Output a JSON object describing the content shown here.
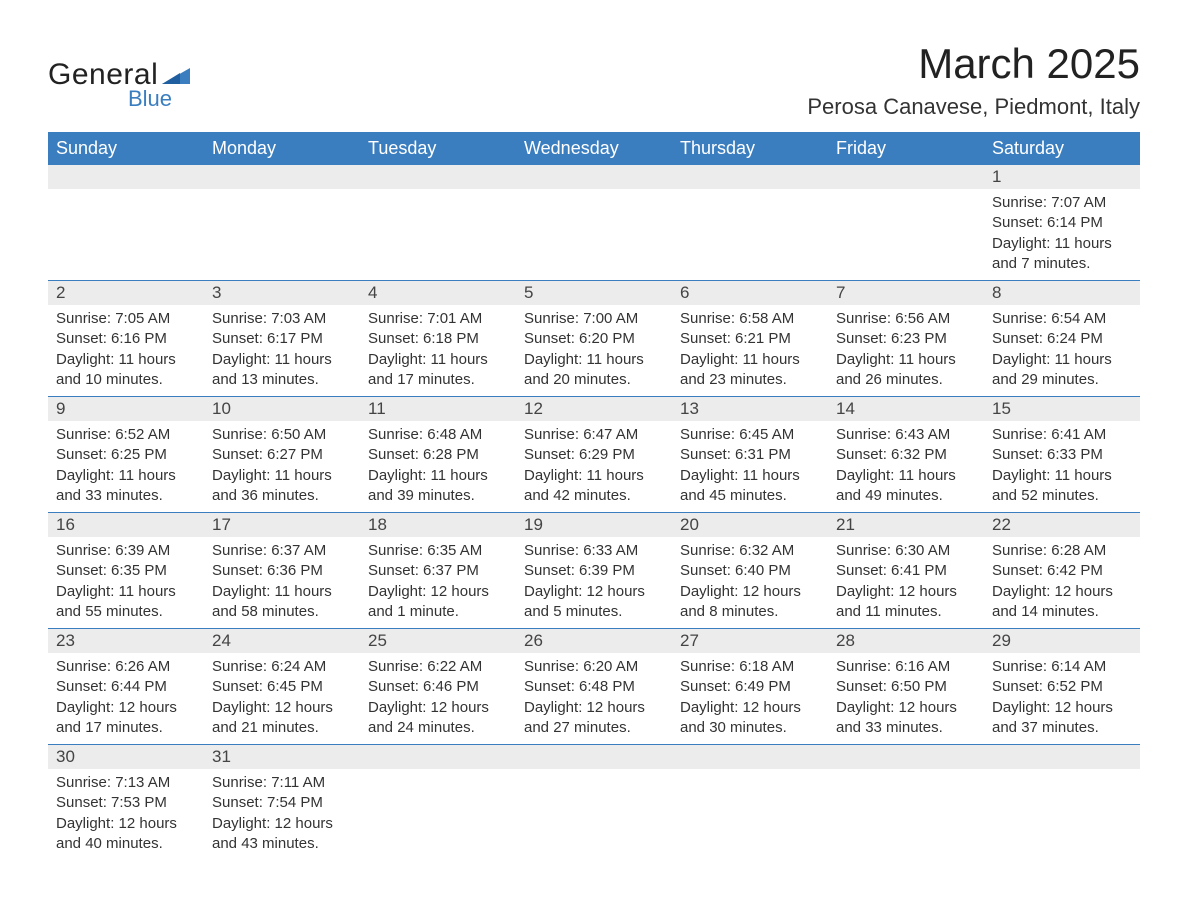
{
  "brand": {
    "name_a": "General",
    "name_b": "Blue",
    "accent": "#3b7ec0"
  },
  "title": "March 2025",
  "location": "Perosa Canavese, Piedmont, Italy",
  "weekdays": [
    "Sunday",
    "Monday",
    "Tuesday",
    "Wednesday",
    "Thursday",
    "Friday",
    "Saturday"
  ],
  "colors": {
    "header_bg": "#3b7ec0",
    "header_text": "#ffffff",
    "daynum_bg": "#ececec",
    "row_divider": "#3b7ec0",
    "text": "#333333",
    "background": "#ffffff"
  },
  "weeks": [
    [
      {
        "day": "",
        "sunrise": "",
        "sunset": "",
        "daylight": ""
      },
      {
        "day": "",
        "sunrise": "",
        "sunset": "",
        "daylight": ""
      },
      {
        "day": "",
        "sunrise": "",
        "sunset": "",
        "daylight": ""
      },
      {
        "day": "",
        "sunrise": "",
        "sunset": "",
        "daylight": ""
      },
      {
        "day": "",
        "sunrise": "",
        "sunset": "",
        "daylight": ""
      },
      {
        "day": "",
        "sunrise": "",
        "sunset": "",
        "daylight": ""
      },
      {
        "day": "1",
        "sunrise": "Sunrise: 7:07 AM",
        "sunset": "Sunset: 6:14 PM",
        "daylight": "Daylight: 11 hours and 7 minutes."
      }
    ],
    [
      {
        "day": "2",
        "sunrise": "Sunrise: 7:05 AM",
        "sunset": "Sunset: 6:16 PM",
        "daylight": "Daylight: 11 hours and 10 minutes."
      },
      {
        "day": "3",
        "sunrise": "Sunrise: 7:03 AM",
        "sunset": "Sunset: 6:17 PM",
        "daylight": "Daylight: 11 hours and 13 minutes."
      },
      {
        "day": "4",
        "sunrise": "Sunrise: 7:01 AM",
        "sunset": "Sunset: 6:18 PM",
        "daylight": "Daylight: 11 hours and 17 minutes."
      },
      {
        "day": "5",
        "sunrise": "Sunrise: 7:00 AM",
        "sunset": "Sunset: 6:20 PM",
        "daylight": "Daylight: 11 hours and 20 minutes."
      },
      {
        "day": "6",
        "sunrise": "Sunrise: 6:58 AM",
        "sunset": "Sunset: 6:21 PM",
        "daylight": "Daylight: 11 hours and 23 minutes."
      },
      {
        "day": "7",
        "sunrise": "Sunrise: 6:56 AM",
        "sunset": "Sunset: 6:23 PM",
        "daylight": "Daylight: 11 hours and 26 minutes."
      },
      {
        "day": "8",
        "sunrise": "Sunrise: 6:54 AM",
        "sunset": "Sunset: 6:24 PM",
        "daylight": "Daylight: 11 hours and 29 minutes."
      }
    ],
    [
      {
        "day": "9",
        "sunrise": "Sunrise: 6:52 AM",
        "sunset": "Sunset: 6:25 PM",
        "daylight": "Daylight: 11 hours and 33 minutes."
      },
      {
        "day": "10",
        "sunrise": "Sunrise: 6:50 AM",
        "sunset": "Sunset: 6:27 PM",
        "daylight": "Daylight: 11 hours and 36 minutes."
      },
      {
        "day": "11",
        "sunrise": "Sunrise: 6:48 AM",
        "sunset": "Sunset: 6:28 PM",
        "daylight": "Daylight: 11 hours and 39 minutes."
      },
      {
        "day": "12",
        "sunrise": "Sunrise: 6:47 AM",
        "sunset": "Sunset: 6:29 PM",
        "daylight": "Daylight: 11 hours and 42 minutes."
      },
      {
        "day": "13",
        "sunrise": "Sunrise: 6:45 AM",
        "sunset": "Sunset: 6:31 PM",
        "daylight": "Daylight: 11 hours and 45 minutes."
      },
      {
        "day": "14",
        "sunrise": "Sunrise: 6:43 AM",
        "sunset": "Sunset: 6:32 PM",
        "daylight": "Daylight: 11 hours and 49 minutes."
      },
      {
        "day": "15",
        "sunrise": "Sunrise: 6:41 AM",
        "sunset": "Sunset: 6:33 PM",
        "daylight": "Daylight: 11 hours and 52 minutes."
      }
    ],
    [
      {
        "day": "16",
        "sunrise": "Sunrise: 6:39 AM",
        "sunset": "Sunset: 6:35 PM",
        "daylight": "Daylight: 11 hours and 55 minutes."
      },
      {
        "day": "17",
        "sunrise": "Sunrise: 6:37 AM",
        "sunset": "Sunset: 6:36 PM",
        "daylight": "Daylight: 11 hours and 58 minutes."
      },
      {
        "day": "18",
        "sunrise": "Sunrise: 6:35 AM",
        "sunset": "Sunset: 6:37 PM",
        "daylight": "Daylight: 12 hours and 1 minute."
      },
      {
        "day": "19",
        "sunrise": "Sunrise: 6:33 AM",
        "sunset": "Sunset: 6:39 PM",
        "daylight": "Daylight: 12 hours and 5 minutes."
      },
      {
        "day": "20",
        "sunrise": "Sunrise: 6:32 AM",
        "sunset": "Sunset: 6:40 PM",
        "daylight": "Daylight: 12 hours and 8 minutes."
      },
      {
        "day": "21",
        "sunrise": "Sunrise: 6:30 AM",
        "sunset": "Sunset: 6:41 PM",
        "daylight": "Daylight: 12 hours and 11 minutes."
      },
      {
        "day": "22",
        "sunrise": "Sunrise: 6:28 AM",
        "sunset": "Sunset: 6:42 PM",
        "daylight": "Daylight: 12 hours and 14 minutes."
      }
    ],
    [
      {
        "day": "23",
        "sunrise": "Sunrise: 6:26 AM",
        "sunset": "Sunset: 6:44 PM",
        "daylight": "Daylight: 12 hours and 17 minutes."
      },
      {
        "day": "24",
        "sunrise": "Sunrise: 6:24 AM",
        "sunset": "Sunset: 6:45 PM",
        "daylight": "Daylight: 12 hours and 21 minutes."
      },
      {
        "day": "25",
        "sunrise": "Sunrise: 6:22 AM",
        "sunset": "Sunset: 6:46 PM",
        "daylight": "Daylight: 12 hours and 24 minutes."
      },
      {
        "day": "26",
        "sunrise": "Sunrise: 6:20 AM",
        "sunset": "Sunset: 6:48 PM",
        "daylight": "Daylight: 12 hours and 27 minutes."
      },
      {
        "day": "27",
        "sunrise": "Sunrise: 6:18 AM",
        "sunset": "Sunset: 6:49 PM",
        "daylight": "Daylight: 12 hours and 30 minutes."
      },
      {
        "day": "28",
        "sunrise": "Sunrise: 6:16 AM",
        "sunset": "Sunset: 6:50 PM",
        "daylight": "Daylight: 12 hours and 33 minutes."
      },
      {
        "day": "29",
        "sunrise": "Sunrise: 6:14 AM",
        "sunset": "Sunset: 6:52 PM",
        "daylight": "Daylight: 12 hours and 37 minutes."
      }
    ],
    [
      {
        "day": "30",
        "sunrise": "Sunrise: 7:13 AM",
        "sunset": "Sunset: 7:53 PM",
        "daylight": "Daylight: 12 hours and 40 minutes."
      },
      {
        "day": "31",
        "sunrise": "Sunrise: 7:11 AM",
        "sunset": "Sunset: 7:54 PM",
        "daylight": "Daylight: 12 hours and 43 minutes."
      },
      {
        "day": "",
        "sunrise": "",
        "sunset": "",
        "daylight": ""
      },
      {
        "day": "",
        "sunrise": "",
        "sunset": "",
        "daylight": ""
      },
      {
        "day": "",
        "sunrise": "",
        "sunset": "",
        "daylight": ""
      },
      {
        "day": "",
        "sunrise": "",
        "sunset": "",
        "daylight": ""
      },
      {
        "day": "",
        "sunrise": "",
        "sunset": "",
        "daylight": ""
      }
    ]
  ]
}
